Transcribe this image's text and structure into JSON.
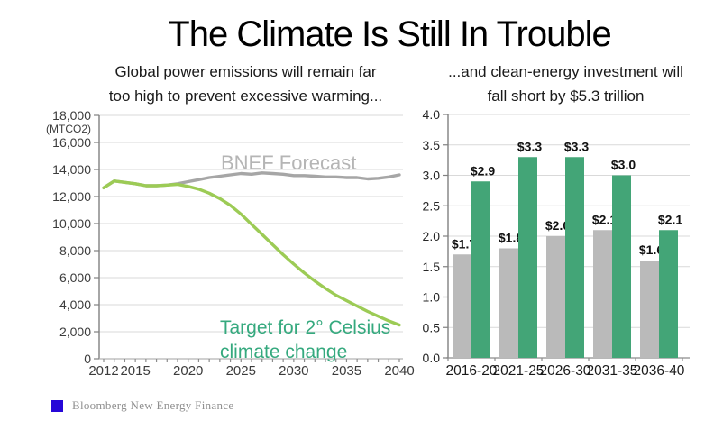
{
  "title": "The Climate Is Still In Trouble",
  "footer": {
    "source": "Bloomberg New Energy Finance",
    "logo_color": "#2607d8"
  },
  "chart_data": [
    {
      "type": "line",
      "title": "Global power emissions will remain far\ntoo high to prevent excessive warming...",
      "unit_label": "(MTCO2)",
      "ylim": [
        0,
        18000
      ],
      "ytick_step": 2000,
      "x": [
        2012,
        2013,
        2014,
        2015,
        2016,
        2017,
        2018,
        2019,
        2020,
        2021,
        2022,
        2023,
        2024,
        2025,
        2026,
        2027,
        2028,
        2029,
        2030,
        2031,
        2032,
        2033,
        2034,
        2035,
        2036,
        2037,
        2038,
        2039,
        2040
      ],
      "xticks": [
        2012,
        2015,
        2020,
        2025,
        2030,
        2035,
        2040
      ],
      "grid": "horizontal",
      "series": [
        {
          "name": "BNEF Forecast",
          "color": "#a6a6a6",
          "label_lines": [
            "BNEF Forecast"
          ],
          "label_color": "#b5b5b5",
          "values": [
            12650,
            13150,
            13050,
            12950,
            12800,
            12800,
            12850,
            12950,
            13100,
            13250,
            13400,
            13500,
            13600,
            13700,
            13650,
            13750,
            13700,
            13650,
            13550,
            13550,
            13500,
            13450,
            13450,
            13400,
            13400,
            13300,
            13350,
            13450,
            13600
          ]
        },
        {
          "name": "Target for 2° Celsius climate change",
          "color": "#9ccb55",
          "label_lines": [
            "Target for 2° Celsius",
            "climate change"
          ],
          "label_color": "#35a97e",
          "values": [
            12650,
            13150,
            13050,
            12950,
            12800,
            12800,
            12850,
            12900,
            12750,
            12550,
            12250,
            11850,
            11350,
            10700,
            9950,
            9200,
            8450,
            7700,
            7000,
            6350,
            5750,
            5200,
            4700,
            4300,
            3900,
            3500,
            3150,
            2800,
            2500
          ]
        }
      ]
    },
    {
      "type": "bar",
      "title": "...and clean-energy investment will\nfall short by $5.3 trillion",
      "ylim": [
        0,
        4.0
      ],
      "ytick_step": 0.5,
      "grid": "horizontal",
      "categories": [
        "2016-20",
        "2021-25",
        "2026-30",
        "2031-35",
        "2036-40"
      ],
      "series": [
        {
          "color": "#bababa",
          "values": [
            1.7,
            1.8,
            2.0,
            2.1,
            1.6
          ],
          "labels": [
            "$1.7",
            "$1.8",
            "$2.0",
            "$2.1",
            "$1.6"
          ]
        },
        {
          "color": "#43a577",
          "values": [
            2.9,
            3.3,
            3.3,
            3.0,
            2.1
          ],
          "labels": [
            "$2.9",
            "$3.3",
            "$3.3",
            "$3.0",
            "$2.1"
          ]
        }
      ]
    }
  ]
}
